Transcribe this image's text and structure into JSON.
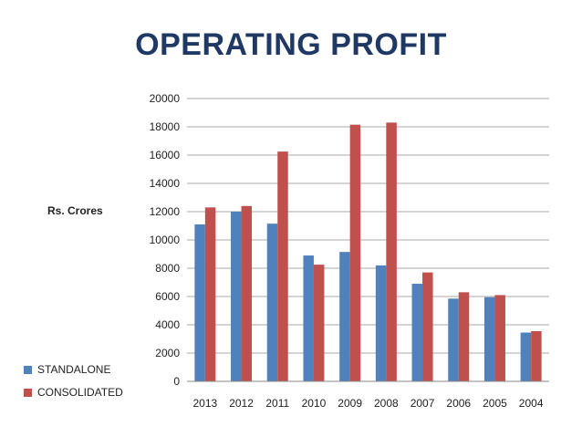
{
  "chart_data": {
    "type": "bar",
    "title": "OPERATING PROFIT",
    "ylabel": "Rs. Crores",
    "xlabel": "",
    "categories": [
      "2013",
      "2012",
      "2011",
      "2010",
      "2009",
      "2008",
      "2007",
      "2006",
      "2005",
      "2004"
    ],
    "series": [
      {
        "name": "STANDALONE",
        "color": "#4f81bd",
        "values": [
          11100,
          12000,
          11150,
          8900,
          9150,
          8200,
          6900,
          5850,
          5950,
          3450
        ]
      },
      {
        "name": "CONSOLIDATED",
        "color": "#c0504d",
        "values": [
          12300,
          12400,
          16250,
          8250,
          18150,
          18300,
          7700,
          6300,
          6100,
          3550
        ]
      }
    ],
    "ylim": [
      0,
      20000
    ],
    "yticks": [
      0,
      2000,
      4000,
      6000,
      8000,
      10000,
      12000,
      14000,
      16000,
      18000,
      20000
    ],
    "grid": true,
    "legend_position": "bottom-left"
  }
}
